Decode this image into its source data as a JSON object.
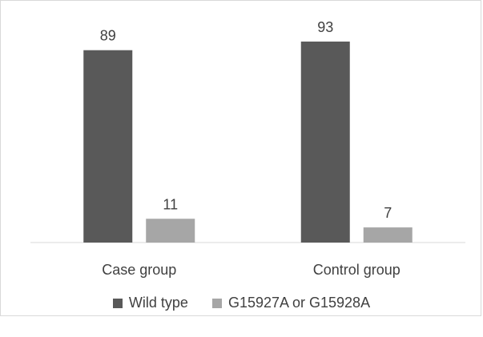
{
  "chart_data": {
    "type": "bar",
    "categories": [
      "Case group",
      "Control group"
    ],
    "series": [
      {
        "name": "Wild type",
        "values": [
          89,
          93
        ],
        "color": "#595959"
      },
      {
        "name": "G15927A or G15928A",
        "values": [
          11,
          7
        ],
        "color": "#a6a6a6"
      }
    ],
    "ylim": [
      0,
      100
    ],
    "grid": false,
    "legend_position": "bottom"
  }
}
